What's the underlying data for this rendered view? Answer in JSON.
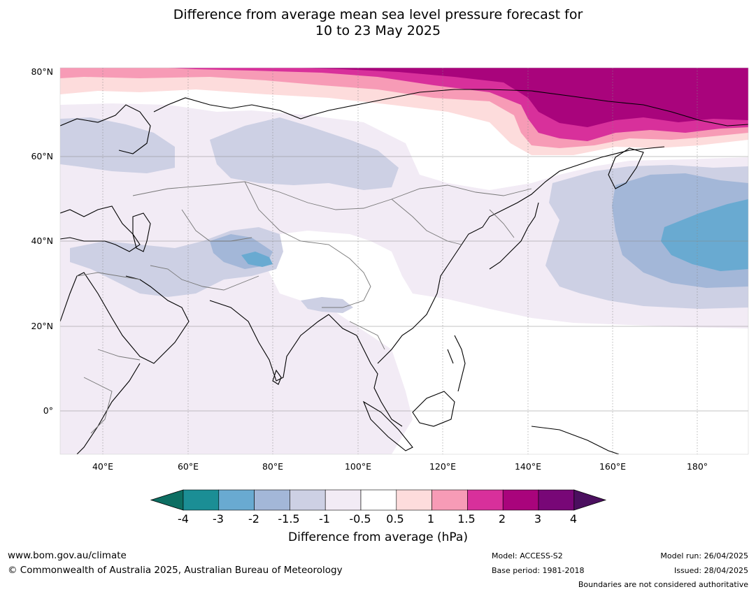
{
  "title": {
    "line1": "Difference from average mean sea level pressure forecast for",
    "line2": "10 to 23 May 2025"
  },
  "map": {
    "lat_labels": [
      "80°N",
      "60°N",
      "40°N",
      "20°N",
      "0°"
    ],
    "lon_labels": [
      "40°E",
      "60°E",
      "80°E",
      "100°E",
      "120°E",
      "140°E",
      "160°E",
      "180°"
    ],
    "lon_range": [
      30,
      192
    ],
    "lat_range": [
      -10,
      81
    ]
  },
  "colorbar": {
    "title": "Difference from average (hPa)",
    "ticks": [
      "-4",
      "-3",
      "-2",
      "-1.5",
      "-1",
      "-0.5",
      "0.5",
      "1",
      "1.5",
      "2",
      "3",
      "4"
    ],
    "colors": [
      "#0d6e62",
      "#1b8e95",
      "#69aad1",
      "#a3b7d8",
      "#cdd0e4",
      "#f2ebf5",
      "#ffffff",
      "#fddcdc",
      "#f79bb6",
      "#d8309b",
      "#a9047c",
      "#780777",
      "#4b0f5f"
    ]
  },
  "footer": {
    "url": "www.bom.gov.au/climate",
    "copyright": "© Commonwealth of Australia 2025, Australian Bureau of Meteorology",
    "model": "Model: ACCESS-S2",
    "base_period": "Base period: 1981-2018",
    "model_run": "Model run: 26/04/2025",
    "issued": "Issued: 28/04/2025",
    "disclaimer": "Boundaries are not considered authoritative"
  }
}
